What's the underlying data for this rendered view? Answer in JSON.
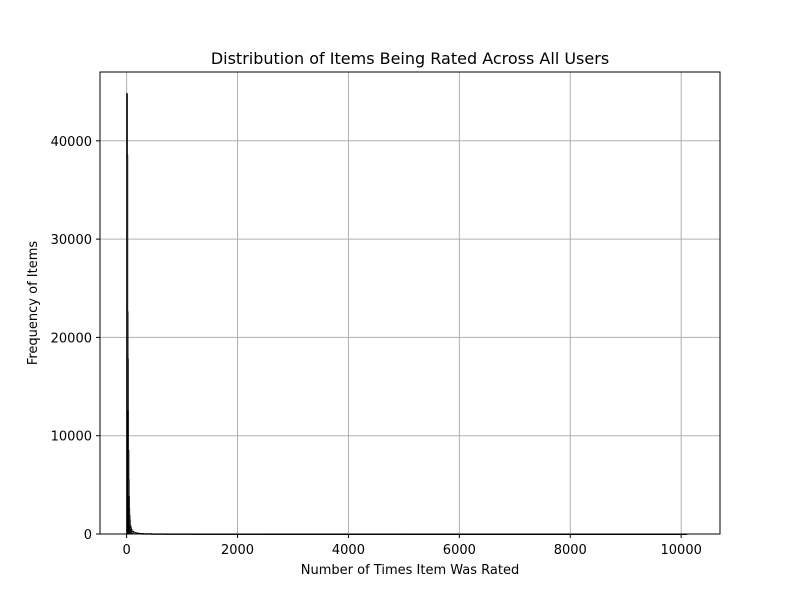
{
  "chart_data": {
    "type": "bar",
    "title": "Distribution of Items Being Rated Across All Users",
    "xlabel": "Number of Times Item Was Rated",
    "ylabel": "Frequency of Items",
    "xlim": [
      -480,
      10700
    ],
    "ylim": [
      0,
      47000
    ],
    "xticks": [
      0,
      2000,
      4000,
      6000,
      8000,
      10000
    ],
    "yticks": [
      0,
      10000,
      20000,
      30000,
      40000
    ],
    "grid": true,
    "bar_color": "#c8c8c8",
    "edge_color": "#000000",
    "bins": [
      {
        "x0": 0,
        "x1": 5,
        "count": 44800
      },
      {
        "x0": 5,
        "x1": 10,
        "count": 38500
      },
      {
        "x0": 10,
        "x1": 15,
        "count": 22600
      },
      {
        "x0": 15,
        "x1": 20,
        "count": 17800
      },
      {
        "x0": 20,
        "x1": 25,
        "count": 12500
      },
      {
        "x0": 25,
        "x1": 30,
        "count": 8500
      },
      {
        "x0": 30,
        "x1": 35,
        "count": 5500
      },
      {
        "x0": 35,
        "x1": 40,
        "count": 3800
      },
      {
        "x0": 40,
        "x1": 45,
        "count": 2600
      },
      {
        "x0": 45,
        "x1": 50,
        "count": 1900
      },
      {
        "x0": 50,
        "x1": 60,
        "count": 1400
      },
      {
        "x0": 60,
        "x1": 70,
        "count": 900
      },
      {
        "x0": 70,
        "x1": 80,
        "count": 650
      },
      {
        "x0": 80,
        "x1": 100,
        "count": 450
      },
      {
        "x0": 100,
        "x1": 130,
        "count": 280
      },
      {
        "x0": 130,
        "x1": 170,
        "count": 170
      },
      {
        "x0": 170,
        "x1": 220,
        "count": 100
      },
      {
        "x0": 220,
        "x1": 300,
        "count": 60
      },
      {
        "x0": 300,
        "x1": 450,
        "count": 35
      },
      {
        "x0": 450,
        "x1": 700,
        "count": 20
      },
      {
        "x0": 700,
        "x1": 1200,
        "count": 12
      },
      {
        "x0": 1200,
        "x1": 2500,
        "count": 6
      },
      {
        "x0": 2500,
        "x1": 5000,
        "count": 3
      },
      {
        "x0": 5000,
        "x1": 10100,
        "count": 1
      }
    ]
  }
}
